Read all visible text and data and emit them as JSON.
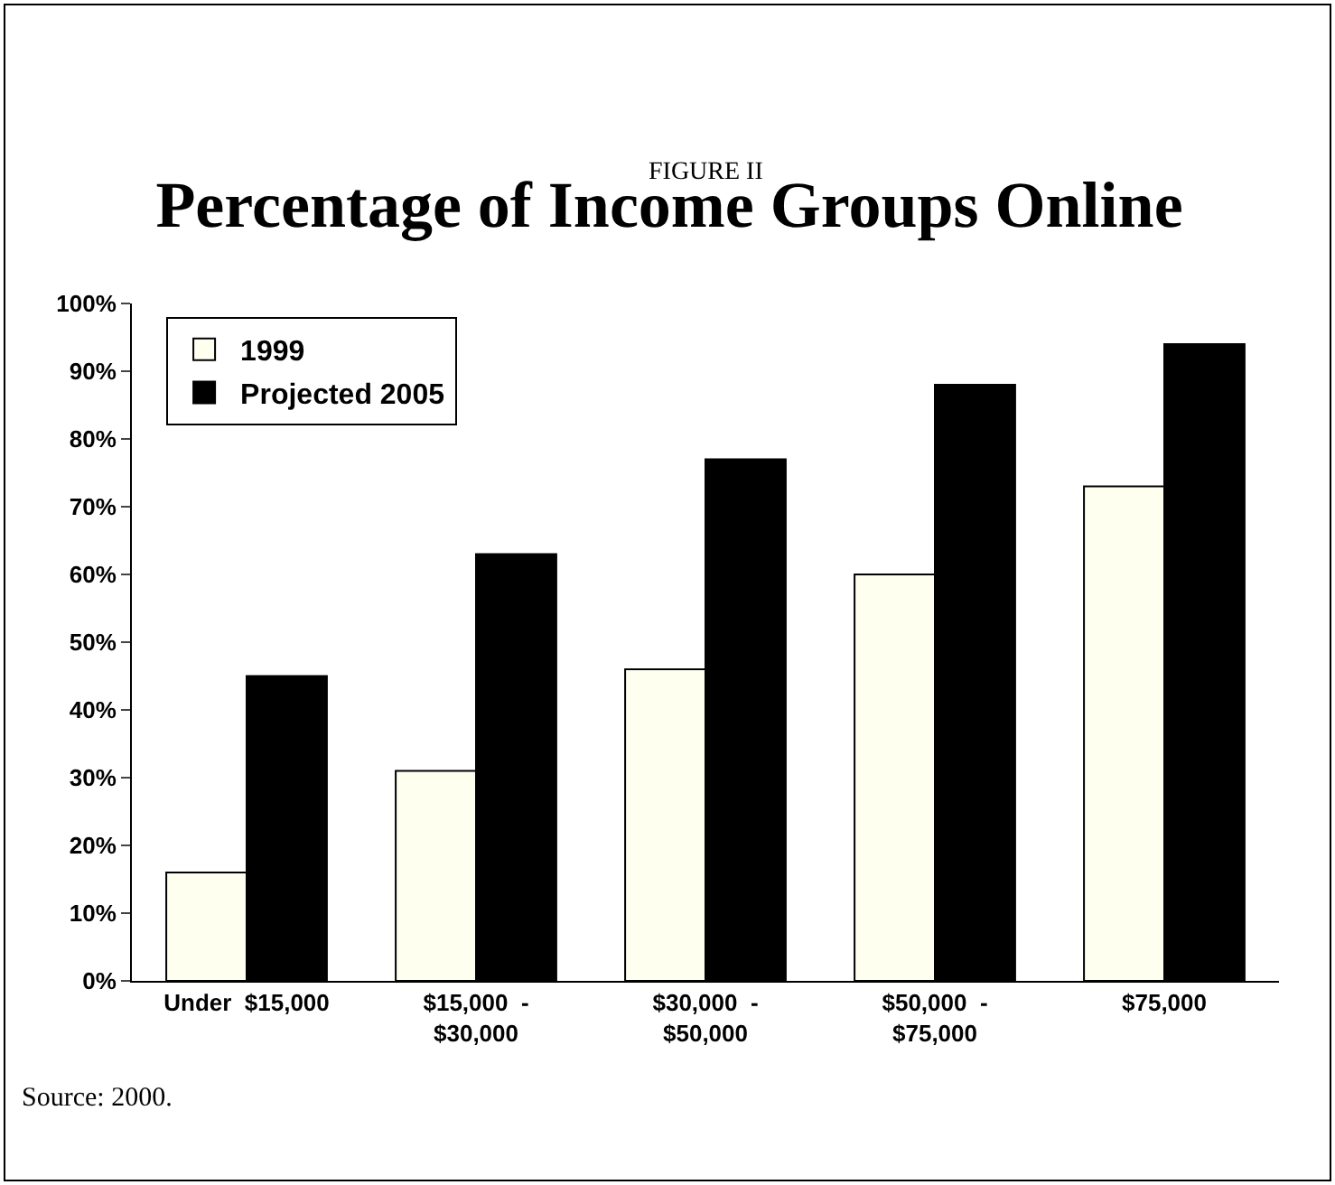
{
  "chart_data": {
    "type": "bar",
    "title": "Percentage of Income Groups Online",
    "subtitle": "FIGURE II",
    "categories": [
      "Under  $15,000",
      "$15,000  -\n$30,000",
      "$30,000  -\n$50,000",
      "$50,000  -\n$75,000",
      "$75,000"
    ],
    "series": [
      {
        "name": "1999",
        "color": "#fffff0",
        "values": [
          16,
          31,
          46,
          60,
          73
        ]
      },
      {
        "name": "Projected 2005",
        "color": "#000000",
        "values": [
          45,
          63,
          77,
          88,
          94
        ]
      }
    ],
    "ylim": [
      0,
      100
    ],
    "yticks": [
      {
        "value": 0,
        "label": "0%"
      },
      {
        "value": 10,
        "label": "10%"
      },
      {
        "value": 20,
        "label": "20%"
      },
      {
        "value": 30,
        "label": "30%"
      },
      {
        "value": 40,
        "label": "40%"
      },
      {
        "value": 50,
        "label": "50%"
      },
      {
        "value": 60,
        "label": "60%"
      },
      {
        "value": 70,
        "label": "70%"
      },
      {
        "value": 80,
        "label": "80%"
      },
      {
        "value": 90,
        "label": "90%"
      },
      {
        "value": 100,
        "label": "100%"
      }
    ],
    "grid": false,
    "legend": "top left",
    "annotations": [
      "Source: 2000."
    ]
  }
}
